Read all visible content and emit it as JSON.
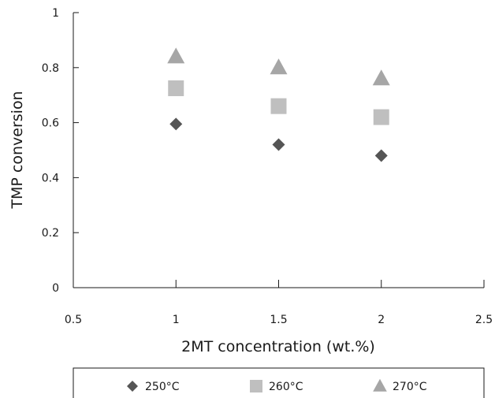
{
  "chart_data": {
    "type": "scatter",
    "xlabel": "2MT concentration (wt.%)",
    "ylabel": "TMP conversion",
    "xlim": [
      0.5,
      2.5
    ],
    "ylim": [
      0,
      1
    ],
    "xticks": [
      "0.5",
      "1",
      "1.5",
      "2",
      "2.5"
    ],
    "yticks": [
      "0",
      "0.2",
      "0.4",
      "0.6",
      "0.8",
      "1"
    ],
    "grid": false,
    "legend_position": "bottom",
    "series": [
      {
        "name": "250°C",
        "marker": "diamond",
        "color": "#555555",
        "points": [
          {
            "x": 1,
            "y": 0.595
          },
          {
            "x": 1.5,
            "y": 0.52
          },
          {
            "x": 2,
            "y": 0.48
          }
        ]
      },
      {
        "name": "260°C",
        "marker": "square",
        "color": "#bfbfbf",
        "points": [
          {
            "x": 1,
            "y": 0.725
          },
          {
            "x": 1.5,
            "y": 0.66
          },
          {
            "x": 2,
            "y": 0.62
          }
        ]
      },
      {
        "name": "270°C",
        "marker": "triangle",
        "color": "#a6a6a6",
        "points": [
          {
            "x": 1,
            "y": 0.84
          },
          {
            "x": 1.5,
            "y": 0.8
          },
          {
            "x": 2,
            "y": 0.76
          }
        ]
      }
    ]
  }
}
